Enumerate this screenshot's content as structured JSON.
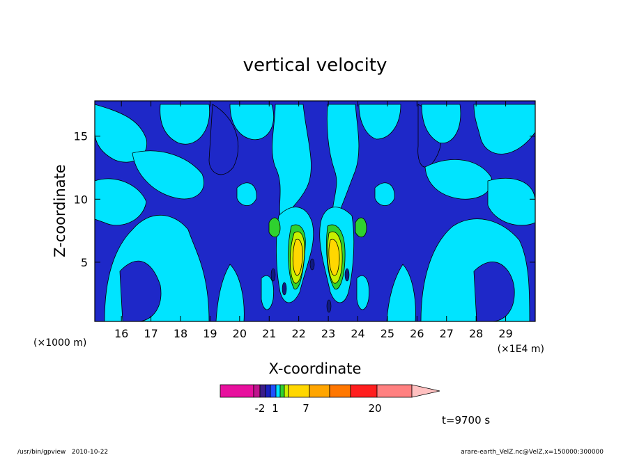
{
  "chart_data": {
    "type": "heatmap",
    "title": "vertical velocity",
    "xlabel": "X-coordinate",
    "ylabel": "Z-coordinate",
    "x_unit_left": "(×1000 m)",
    "x_unit_right": "(×1E4 m)",
    "xlim": [
      15.1,
      30
    ],
    "ylim": [
      0.3,
      17.8
    ],
    "x_ticks": [
      "16",
      "17",
      "18",
      "19",
      "20",
      "21",
      "22",
      "23",
      "24",
      "25",
      "26",
      "27",
      "28",
      "29"
    ],
    "y_ticks": [
      "5",
      "10",
      "15"
    ],
    "time_label": "t=9700 s",
    "colorbar": {
      "colors": [
        "#e8109e",
        "#c0148e",
        "#3c1d8a",
        "#1a20c0",
        "#2050ff",
        "#00e4ff",
        "#2fd12f",
        "#c8f000",
        "#ffd700",
        "#ffa500",
        "#ff7700",
        "#ff1e1e",
        "#ff8080",
        "#ffc0c0"
      ],
      "tick_labels": [
        "-2",
        "1",
        "7",
        "20"
      ]
    },
    "background_level_colors": [
      "#1e28c8",
      "#00e4ff"
    ]
  },
  "footer": {
    "left": "/usr/bin/gpview   2010-10-22",
    "right": "arare-earth_VelZ.nc@VelZ,x=150000:300000"
  }
}
